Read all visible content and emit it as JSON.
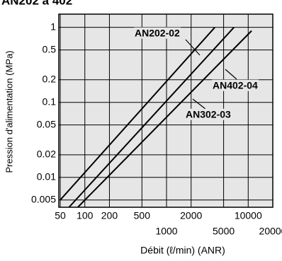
{
  "chart_data": {
    "type": "line",
    "title": "AN202 à 402",
    "x_label": "Débit (ℓ/min) (ANR)",
    "y_label": "Pression d'alimentation (MPa)",
    "log_x": true,
    "log_y": true,
    "grid": true,
    "xlim": [
      48,
      20000
    ],
    "ylim": [
      0.004,
      1.5
    ],
    "xticks": [
      50,
      100,
      200,
      500,
      1000,
      2000,
      5000,
      10000,
      20000
    ],
    "yticks": [
      0.005,
      0.01,
      0.02,
      0.05,
      0.1,
      0.2,
      0.5,
      1
    ],
    "series": [
      {
        "name": "AN202-02",
        "color": "#000000",
        "x": [
          50,
          3900
        ],
        "values": [
          0.005,
          1
        ]
      },
      {
        "name": "AN302-03",
        "color": "#000000",
        "x": [
          64,
          6700
        ],
        "values": [
          0.004,
          1
        ]
      },
      {
        "name": "AN402-04",
        "color": "#000000",
        "x": [
          82,
          11000
        ],
        "values": [
          0.004,
          0.9
        ]
      }
    ]
  }
}
